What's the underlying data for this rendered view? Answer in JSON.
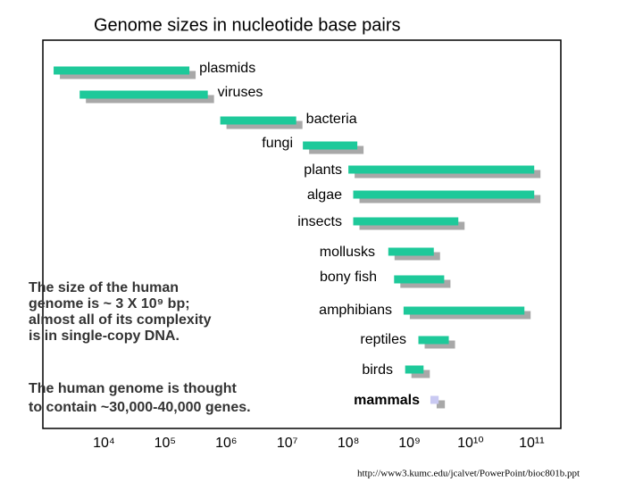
{
  "chart_data": {
    "type": "range_bar",
    "title": "Genome sizes in nucleotide base pairs",
    "categories": [
      "plasmids",
      "viruses",
      "bacteria",
      "fungi",
      "plants",
      "algae",
      "insects",
      "mollusks",
      "bony fish",
      "amphibians",
      "reptiles",
      "birds",
      "mammals"
    ],
    "low": [
      1500,
      4000,
      800000,
      18000000,
      100000000,
      120000000,
      120000000,
      450000000,
      560000000,
      800000000,
      1400000000,
      850000000,
      2200000000
    ],
    "high": [
      250000,
      500000,
      14000000,
      140000000,
      110000000000,
      110000000000,
      6300000000,
      2500000000,
      3700000000,
      76000000000,
      4400000000,
      1700000000,
      3000000000
    ],
    "colors": [
      "#1ec99a",
      "#1ec99a",
      "#1ec99a",
      "#1ec99a",
      "#1ec99a",
      "#1ec99a",
      "#1ec99a",
      "#1ec99a",
      "#1ec99a",
      "#1ec99a",
      "#1ec99a",
      "#1ec99a",
      "#c9c9f2"
    ],
    "shadow_color": "#a8a8a8",
    "xscale": "log",
    "xlim": [
      1000,
      300000000000
    ],
    "xticks": [
      {
        "value": 10000,
        "label": "10⁴"
      },
      {
        "value": 100000,
        "label": "10⁵"
      },
      {
        "value": 1000000,
        "label": "10⁶"
      },
      {
        "value": 10000000,
        "label": "10⁷"
      },
      {
        "value": 100000000,
        "label": "10⁸"
      },
      {
        "value": 1000000000,
        "label": "10⁹"
      },
      {
        "value": 10000000000,
        "label": "10¹⁰"
      },
      {
        "value": 100000000000,
        "label": "10¹¹"
      }
    ],
    "annotations": [
      [
        "The size of the human",
        "genome is ~ 3 X 10⁹ bp;",
        "almost all of its complexity",
        "is in single-copy DNA."
      ],
      [
        "The human genome is thought",
        "to contain ~30,000-40,000 genes."
      ]
    ],
    "source": "http://www3.kumc.edu/jcalvet/PowerPoint/bioc801b.ppt"
  }
}
